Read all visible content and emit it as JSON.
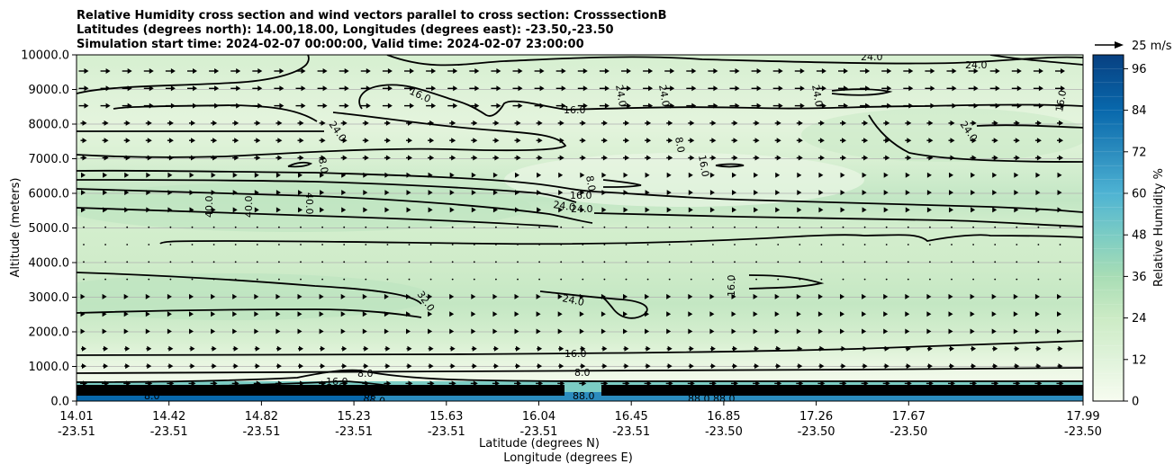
{
  "chart_data": {
    "type": "heatmap",
    "title_lines": [
      "Relative Humidity cross section and wind vectors parallel to cross section: CrosssectionB",
      "Latitudes (degrees north): 14.00,18.00, Longitudes (degrees east): -23.50,-23.50",
      "Simulation start time: 2024-02-07 00:00:00, Valid time: 2024-02-07 23:00:00"
    ],
    "ylabel": "Altitude (meters)",
    "xlabel_lat": "Latitude (degrees N)",
    "xlabel_lon": "Longitude (degrees E)",
    "ylim": [
      0,
      10000
    ],
    "y_ticks": [
      "0.0",
      "1000.0",
      "2000.0",
      "3000.0",
      "4000.0",
      "5000.0",
      "6000.0",
      "7000.0",
      "8000.0",
      "9000.0",
      "10000.0"
    ],
    "x_ticks": [
      {
        "lat": "14.01",
        "lon": "-23.51"
      },
      {
        "lat": "14.42",
        "lon": "-23.51"
      },
      {
        "lat": "14.82",
        "lon": "-23.51"
      },
      {
        "lat": "15.23",
        "lon": "-23.51"
      },
      {
        "lat": "15.63",
        "lon": "-23.51"
      },
      {
        "lat": "16.04",
        "lon": "-23.51"
      },
      {
        "lat": "16.45",
        "lon": "-23.51"
      },
      {
        "lat": "16.85",
        "lon": "-23.50"
      },
      {
        "lat": "17.26",
        "lon": "-23.50"
      },
      {
        "lat": "17.67",
        "lon": "-23.50"
      },
      {
        "lat": "17.99",
        "lon": "-23.50"
      }
    ],
    "colorbar": {
      "label": "Relative Humidity %",
      "range": [
        0,
        100
      ],
      "ticks": [
        "0",
        "12",
        "24",
        "36",
        "48",
        "60",
        "72",
        "84",
        "96"
      ]
    },
    "quiver_key": "25 m/s",
    "contour_levels": [
      "8.0",
      "16.0",
      "24.0",
      "32.0",
      "40.0",
      "88.0"
    ],
    "grid": true,
    "colors": {
      "low": "#f7fcf0",
      "mid": "#a8ddb5",
      "high": "#084081"
    }
  }
}
